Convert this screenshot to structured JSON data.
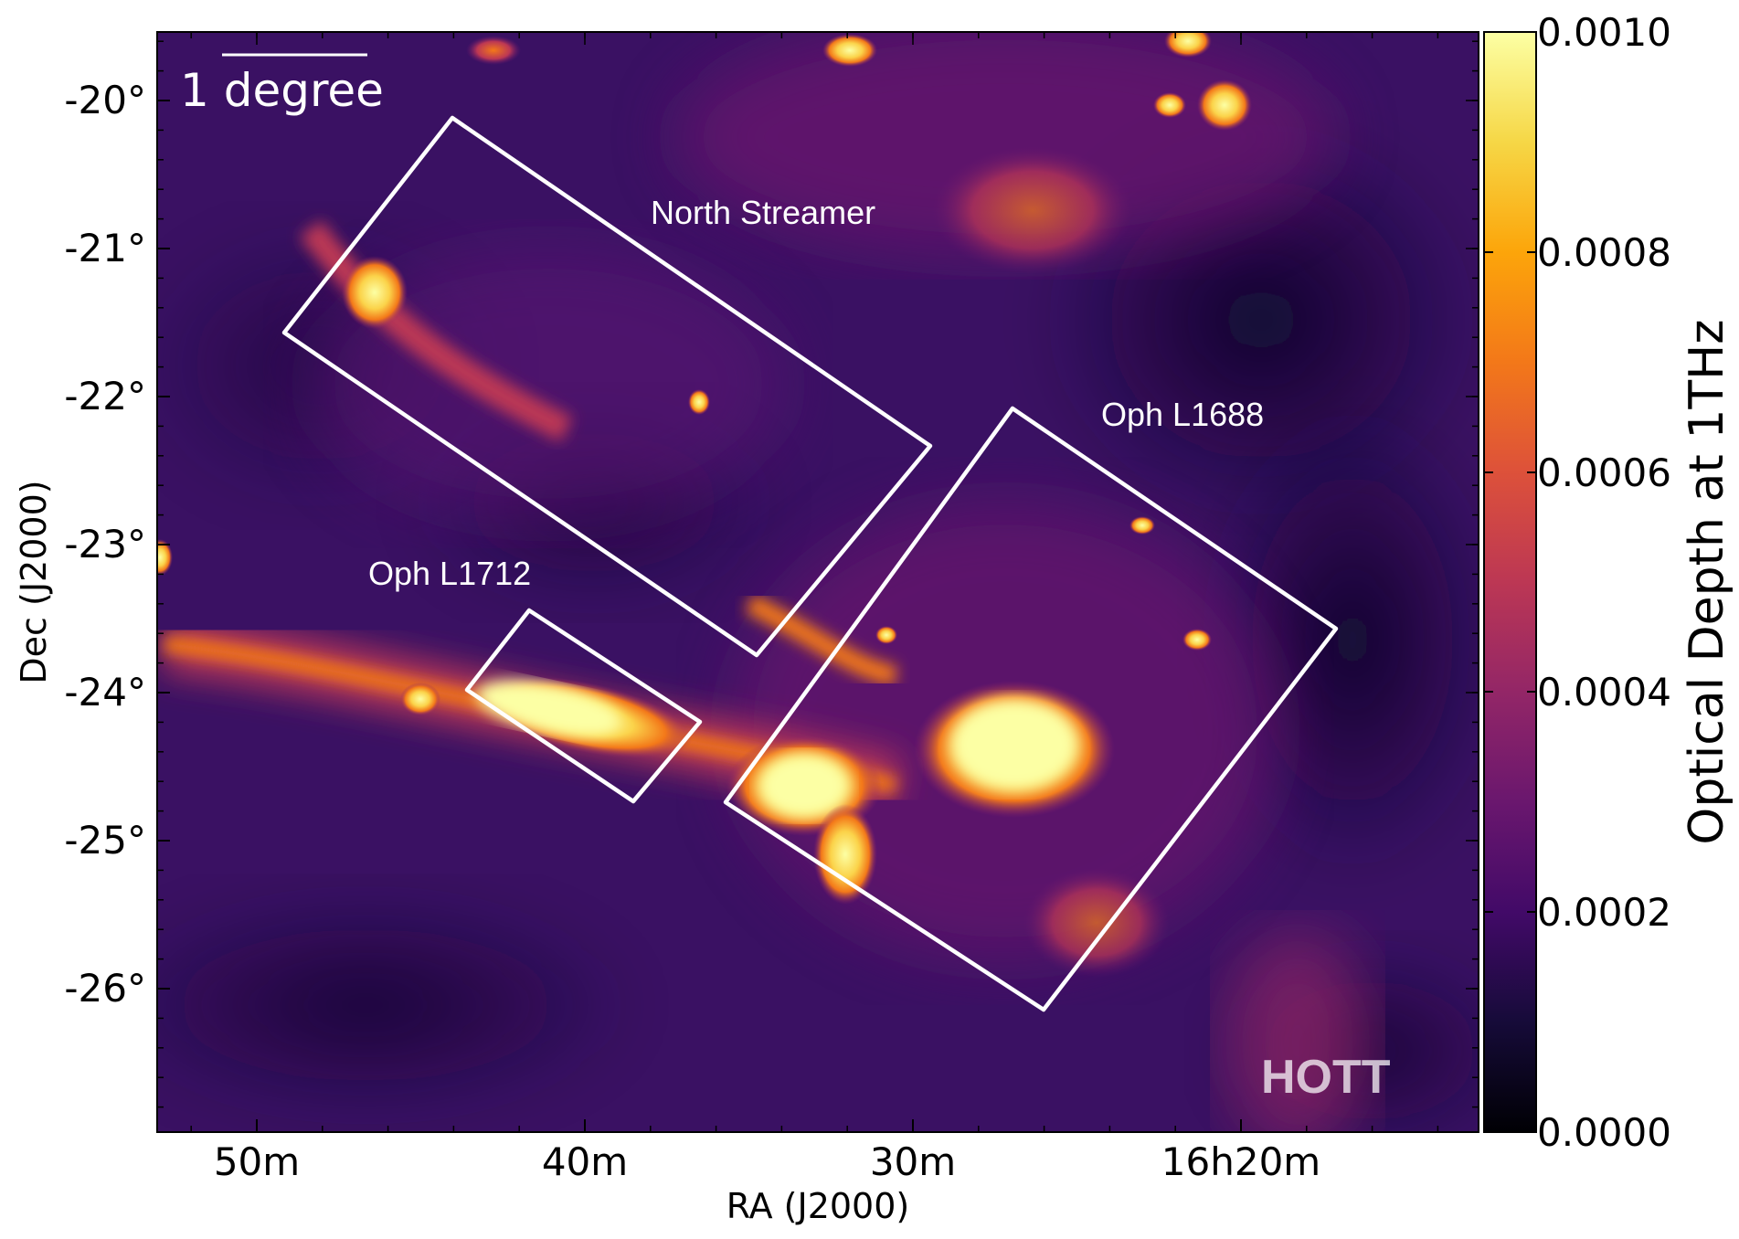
{
  "map": {
    "scale_bar_label": "1 degree",
    "watermark": "HOTT",
    "regions": [
      {
        "name": "North Streamer"
      },
      {
        "name": "Oph L1688"
      },
      {
        "name": "Oph L1712"
      }
    ]
  },
  "axes": {
    "xlabel": "RA (J2000)",
    "ylabel": "Dec (J2000)",
    "x_ticks": [
      "50m",
      "40m",
      "30m",
      "16h20m"
    ],
    "y_ticks": [
      "-20°",
      "-21°",
      "-22°",
      "-23°",
      "-24°",
      "-25°",
      "-26°"
    ]
  },
  "colorbar": {
    "label": "Optical Depth at 1THz",
    "colormap": "inferno",
    "range": [
      0.0,
      0.001
    ],
    "ticks": [
      "0.0010",
      "0.0008",
      "0.0006",
      "0.0004",
      "0.0002",
      "0.0000"
    ]
  },
  "colors": {
    "background_low": "#1e0b45",
    "mid": "#6b1d80",
    "high": "#f9fca0",
    "annotation": "#ffffff"
  }
}
